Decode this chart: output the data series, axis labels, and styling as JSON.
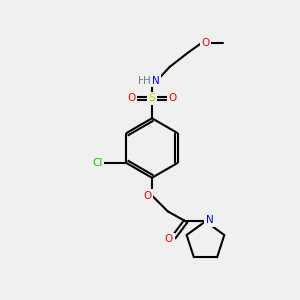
{
  "bg_color": "#f0f0f0",
  "bond_color": "#000000",
  "bond_width": 1.5,
  "atom_colors": {
    "C": "#000000",
    "H": "#708090",
    "N": "#0000ff",
    "O": "#ff0000",
    "S": "#cccc00",
    "Cl": "#00cc00"
  },
  "figsize": [
    3.0,
    3.0
  ],
  "dpi": 100
}
